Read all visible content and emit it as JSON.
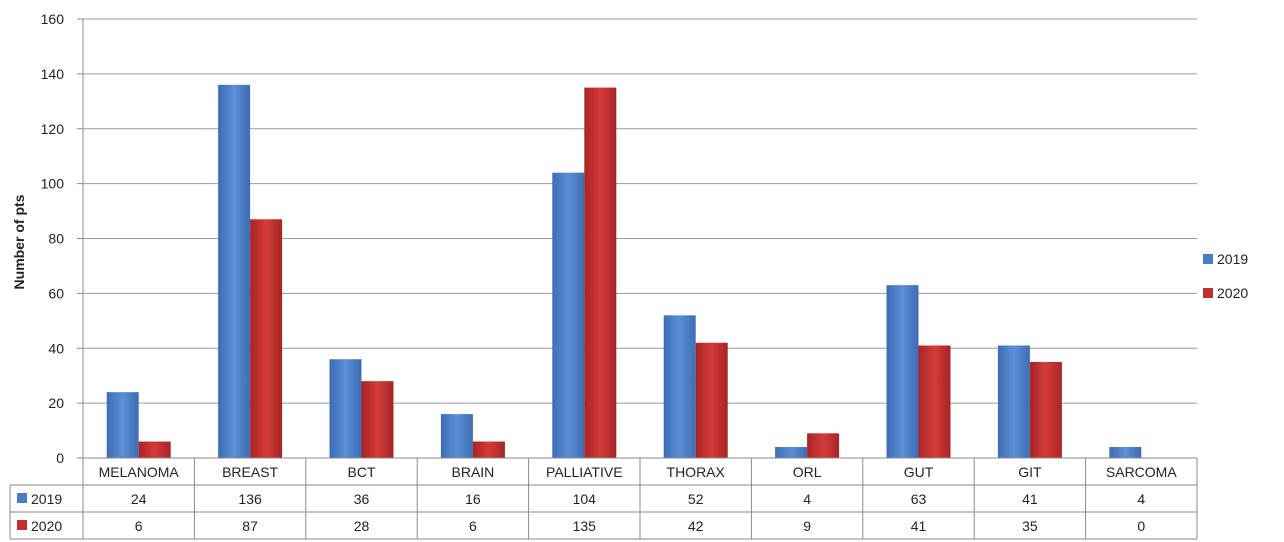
{
  "chart_data": {
    "type": "bar",
    "ylabel": "Number of pts",
    "xlabel": "",
    "title": "",
    "ylim": [
      0,
      160
    ],
    "yticks": [
      0,
      20,
      40,
      60,
      80,
      100,
      120,
      140,
      160
    ],
    "grid": true,
    "legend_position": "right",
    "data_table": true,
    "categories": [
      "MELANOMA",
      "BREAST",
      "BCT",
      "BRAIN",
      "PALLIATIVE",
      "THORAX",
      "ORL",
      "GUT",
      "GIT",
      "SARCOMA"
    ],
    "series": [
      {
        "name": "2019",
        "color": "#4a7cc4",
        "values": [
          24,
          136,
          36,
          16,
          104,
          52,
          4,
          63,
          41,
          4
        ]
      },
      {
        "name": "2020",
        "color": "#c0302f",
        "values": [
          6,
          87,
          28,
          6,
          135,
          42,
          9,
          41,
          35,
          0
        ]
      }
    ]
  }
}
